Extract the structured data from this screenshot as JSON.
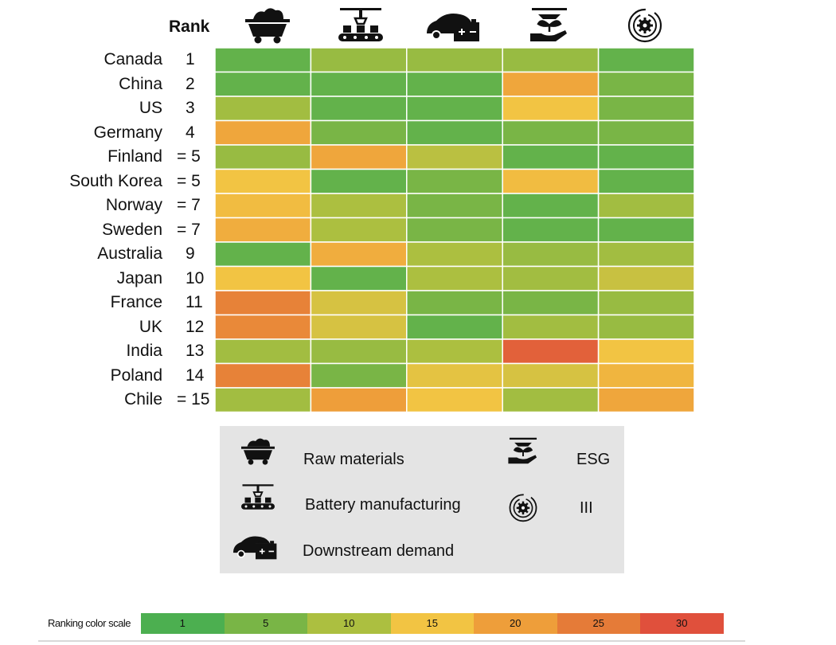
{
  "chart_data": {
    "type": "heatmap",
    "rank_header": "Rank",
    "columns": [
      {
        "key": "raw",
        "icon": "mine-cart-icon",
        "label": "Raw materials"
      },
      {
        "key": "battery",
        "icon": "battery-factory-icon",
        "label": "Battery manufacturing"
      },
      {
        "key": "demand",
        "icon": "electric-car-icon",
        "label": "Downstream demand"
      },
      {
        "key": "esg",
        "icon": "plant-hand-icon",
        "label": "ESG"
      },
      {
        "key": "iii",
        "icon": "gear-orbit-icon",
        "label": "III"
      }
    ],
    "rows": [
      {
        "country": "Canada",
        "rank": "1",
        "values": [
          3,
          8,
          8,
          8,
          3
        ]
      },
      {
        "country": "China",
        "rank": "2",
        "values": [
          3,
          3,
          3,
          19,
          5
        ]
      },
      {
        "country": "US",
        "rank": "3",
        "values": [
          9,
          3,
          3,
          15,
          5
        ]
      },
      {
        "country": "Germany",
        "rank": "4",
        "values": [
          19,
          5,
          3,
          5,
          5
        ]
      },
      {
        "country": "Finland",
        "rank": "= 5",
        "values": [
          8,
          19,
          11,
          3,
          3
        ]
      },
      {
        "country": "South Korea",
        "rank": "= 5",
        "values": [
          15,
          3,
          5,
          16,
          3
        ]
      },
      {
        "country": "Norway",
        "rank": "= 7",
        "values": [
          16,
          10,
          5,
          3,
          9
        ]
      },
      {
        "country": "Sweden",
        "rank": "= 7",
        "values": [
          18,
          10,
          5,
          3,
          3
        ]
      },
      {
        "country": "Australia",
        "rank": "9",
        "values": [
          3,
          18,
          10,
          8,
          9
        ]
      },
      {
        "country": "Japan",
        "rank": "10",
        "values": [
          15,
          3,
          10,
          9,
          12
        ]
      },
      {
        "country": "France",
        "rank": "11",
        "values": [
          24,
          13,
          5,
          5,
          8
        ]
      },
      {
        "country": "UK",
        "rank": "12",
        "values": [
          23,
          13,
          3,
          9,
          8
        ]
      },
      {
        "country": "India",
        "rank": "13",
        "values": [
          9,
          8,
          10,
          28,
          15
        ]
      },
      {
        "country": "Poland",
        "rank": "14",
        "values": [
          24,
          5,
          14,
          13,
          17
        ]
      },
      {
        "country": "Chile",
        "rank": "= 15",
        "values": [
          9,
          20,
          15,
          9,
          19
        ]
      }
    ],
    "color_scale": {
      "title": "Ranking color scale",
      "ticks": [
        "1",
        "5",
        "10",
        "15",
        "20",
        "25",
        "30"
      ],
      "stops": [
        {
          "value": 1,
          "color": "#4caf50"
        },
        {
          "value": 5,
          "color": "#79b546"
        },
        {
          "value": 10,
          "color": "#acbf40"
        },
        {
          "value": 15,
          "color": "#f2c443"
        },
        {
          "value": 20,
          "color": "#ee9e3a"
        },
        {
          "value": 25,
          "color": "#e57b38"
        },
        {
          "value": 30,
          "color": "#e0503c"
        }
      ]
    }
  }
}
